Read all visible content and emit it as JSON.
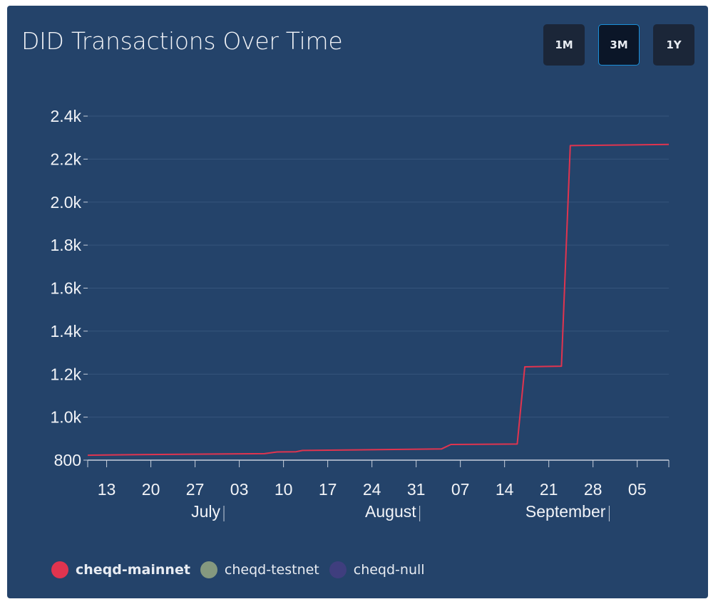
{
  "header": {
    "title": "DID Transactions Over Time"
  },
  "range_buttons": [
    {
      "label": "1M",
      "active": false
    },
    {
      "label": "3M",
      "active": true
    },
    {
      "label": "1Y",
      "active": false
    }
  ],
  "legend": [
    {
      "label": "cheqd-mainnet",
      "color": "#e0344f",
      "active": true
    },
    {
      "label": "cheqd-testnet",
      "color": "#85997f",
      "active": false
    },
    {
      "label": "cheqd-null",
      "color": "#3f3e7e",
      "active": false
    }
  ],
  "chart_data": {
    "type": "line",
    "title": "DID Transactions Over Time",
    "xlabel": "",
    "ylabel": "",
    "x_start": "2023-07-10",
    "x_end": "2023-10-10",
    "ylim": [
      800,
      2400
    ],
    "yticks": [
      800,
      1000,
      1200,
      1400,
      1600,
      1800,
      2000,
      2200,
      2400
    ],
    "ytick_labels": [
      "800",
      "1.0k",
      "1.2k",
      "1.4k",
      "1.6k",
      "1.8k",
      "2.0k",
      "2.2k",
      "2.4k"
    ],
    "xtick_labels": [
      {
        "date": "2023-07-13",
        "label": "13"
      },
      {
        "date": "2023-07-20",
        "label": "20"
      },
      {
        "date": "2023-07-27",
        "label": "27"
      },
      {
        "date": "2023-08-03",
        "label": "03"
      },
      {
        "date": "2023-08-10",
        "label": "10"
      },
      {
        "date": "2023-08-17",
        "label": "17"
      },
      {
        "date": "2023-08-24",
        "label": "24"
      },
      {
        "date": "2023-08-31",
        "label": "31"
      },
      {
        "date": "2023-09-07",
        "label": "07"
      },
      {
        "date": "2023-09-14",
        "label": "14"
      },
      {
        "date": "2023-09-21",
        "label": "21"
      },
      {
        "date": "2023-09-28",
        "label": "28"
      },
      {
        "date": "2023-10-05",
        "label": "05"
      }
    ],
    "month_labels": [
      {
        "label": "July",
        "date": "2023-07-31"
      },
      {
        "label": "August",
        "date": "2023-08-31"
      },
      {
        "label": "September",
        "date": "2023-09-30"
      }
    ],
    "grid": true,
    "legend_position": "bottom-left",
    "series": [
      {
        "name": "cheqd-mainnet",
        "color": "#e0344f",
        "points": [
          [
            "2023-07-10",
            823
          ],
          [
            "2023-07-18",
            826
          ],
          [
            "2023-08-07",
            830
          ],
          [
            "2023-08-09",
            838
          ],
          [
            "2023-08-12",
            839
          ],
          [
            "2023-08-13",
            845
          ],
          [
            "2023-09-04",
            852
          ],
          [
            "2023-09-05.5",
            873
          ],
          [
            "2023-09-16",
            875
          ],
          [
            "2023-09-17.2",
            1234
          ],
          [
            "2023-09-23",
            1237
          ],
          [
            "2023-09-24.4",
            2263
          ],
          [
            "2023-10-10",
            2268
          ]
        ]
      }
    ]
  }
}
